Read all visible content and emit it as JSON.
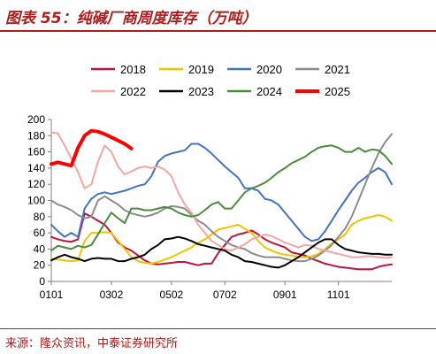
{
  "figure": {
    "title": "图表 55：纯碱厂商周度库存（万吨）",
    "source": "来源：隆众资讯，中泰证券研究所"
  },
  "chart_data": {
    "type": "line",
    "ylim": [
      0,
      200
    ],
    "yticks": [
      0,
      20,
      40,
      60,
      80,
      100,
      120,
      140,
      160,
      180,
      200
    ],
    "xlim": [
      1,
      52
    ],
    "xticks": [
      {
        "x": 1,
        "label": "0101"
      },
      {
        "x": 10,
        "label": "0302"
      },
      {
        "x": 19,
        "label": "0502"
      },
      {
        "x": 27,
        "label": "0702"
      },
      {
        "x": 36,
        "label": "0901"
      },
      {
        "x": 44,
        "label": "1101"
      }
    ],
    "grid": false,
    "legend_position": "top",
    "series": [
      {
        "name": "2018",
        "color": "#c0143c",
        "width": 2,
        "y": [
          55,
          52,
          50,
          49,
          52,
          84,
          80,
          75,
          70,
          60,
          48,
          42,
          38,
          32,
          26,
          22,
          21,
          22,
          23,
          24,
          24,
          22,
          20,
          22,
          22,
          35,
          45,
          55,
          58,
          60,
          63,
          58,
          52,
          48,
          45,
          42,
          36,
          34,
          32,
          28,
          25,
          22,
          20,
          18,
          17,
          16,
          15,
          15,
          15,
          18,
          20,
          21
        ]
      },
      {
        "name": "2019",
        "color": "#f5c400",
        "width": 2,
        "y": [
          28,
          27,
          26,
          25,
          26,
          50,
          60,
          60,
          61,
          60,
          50,
          40,
          30,
          25,
          23,
          22,
          24,
          27,
          30,
          34,
          38,
          42,
          48,
          52,
          58,
          64,
          66,
          68,
          70,
          65,
          60,
          50,
          42,
          38,
          35,
          33,
          32,
          30,
          30,
          31,
          34,
          40,
          47,
          52,
          58,
          70,
          75,
          78,
          80,
          82,
          80,
          75
        ]
      },
      {
        "name": "2020",
        "color": "#4472c4",
        "width": 2,
        "y": [
          70,
          62,
          55,
          60,
          55,
          90,
          102,
          108,
          110,
          108,
          110,
          112,
          115,
          118,
          120,
          130,
          148,
          155,
          158,
          160,
          162,
          170,
          170,
          165,
          158,
          150,
          142,
          135,
          128,
          115,
          115,
          112,
          102,
          100,
          95,
          85,
          75,
          65,
          55,
          50,
          52,
          62,
          75,
          88,
          100,
          112,
          122,
          128,
          135,
          140,
          135,
          120
        ]
      },
      {
        "name": "2021",
        "color": "#8c8c8c",
        "width": 2,
        "y": [
          100,
          95,
          92,
          88,
          82,
          78,
          80,
          100,
          105,
          100,
          95,
          88,
          84,
          82,
          80,
          82,
          85,
          90,
          93,
          92,
          90,
          82,
          75,
          70,
          62,
          55,
          50,
          45,
          42,
          40,
          35,
          32,
          30,
          30,
          30,
          28,
          26,
          25,
          25,
          28,
          32,
          38,
          45,
          55,
          65,
          80,
          100,
          120,
          140,
          158,
          172,
          182
        ]
      },
      {
        "name": "2022",
        "color": "#f4a6a0",
        "width": 2,
        "y": [
          184,
          183,
          168,
          152,
          135,
          115,
          120,
          148,
          168,
          160,
          142,
          132,
          136,
          140,
          142,
          140,
          142,
          138,
          130,
          110,
          95,
          85,
          70,
          60,
          50,
          45,
          40,
          38,
          42,
          46,
          52,
          55,
          58,
          56,
          52,
          48,
          45,
          42,
          45,
          44,
          40,
          38,
          36,
          34,
          32,
          30,
          30,
          31,
          31,
          30,
          29,
          30
        ]
      },
      {
        "name": "2023",
        "color": "#000000",
        "width": 2,
        "y": [
          26,
          30,
          33,
          30,
          28,
          25,
          28,
          29,
          28,
          28,
          25,
          25,
          28,
          30,
          33,
          40,
          45,
          52,
          53,
          55,
          53,
          50,
          46,
          44,
          42,
          40,
          38,
          33,
          30,
          25,
          24,
          22,
          20,
          18,
          17,
          20,
          25,
          30,
          36,
          42,
          48,
          52,
          52,
          45,
          40,
          38,
          36,
          35,
          34,
          34,
          33,
          33
        ]
      },
      {
        "name": "2024",
        "color": "#4a8c3c",
        "width": 2,
        "y": [
          38,
          44,
          42,
          40,
          44,
          42,
          45,
          58,
          72,
          85,
          78,
          72,
          90,
          90,
          88,
          88,
          90,
          92,
          90,
          85,
          82,
          80,
          82,
          88,
          95,
          98,
          90,
          90,
          100,
          110,
          115,
          118,
          122,
          128,
          135,
          140,
          146,
          150,
          154,
          160,
          165,
          167,
          168,
          165,
          160,
          160,
          165,
          160,
          163,
          162,
          155,
          145
        ]
      },
      {
        "name": "2025",
        "color": "#ff0000",
        "width": 4,
        "y": [
          145,
          147,
          145,
          143,
          165,
          180,
          186,
          185,
          182,
          178,
          174,
          170,
          164,
          null,
          null,
          null,
          null,
          null,
          null,
          null,
          null,
          null,
          null,
          null,
          null,
          null,
          null,
          null,
          null,
          null,
          null,
          null,
          null,
          null,
          null,
          null,
          null,
          null,
          null,
          null,
          null,
          null,
          null,
          null,
          null,
          null,
          null,
          null,
          null,
          null,
          null,
          null
        ]
      }
    ]
  }
}
